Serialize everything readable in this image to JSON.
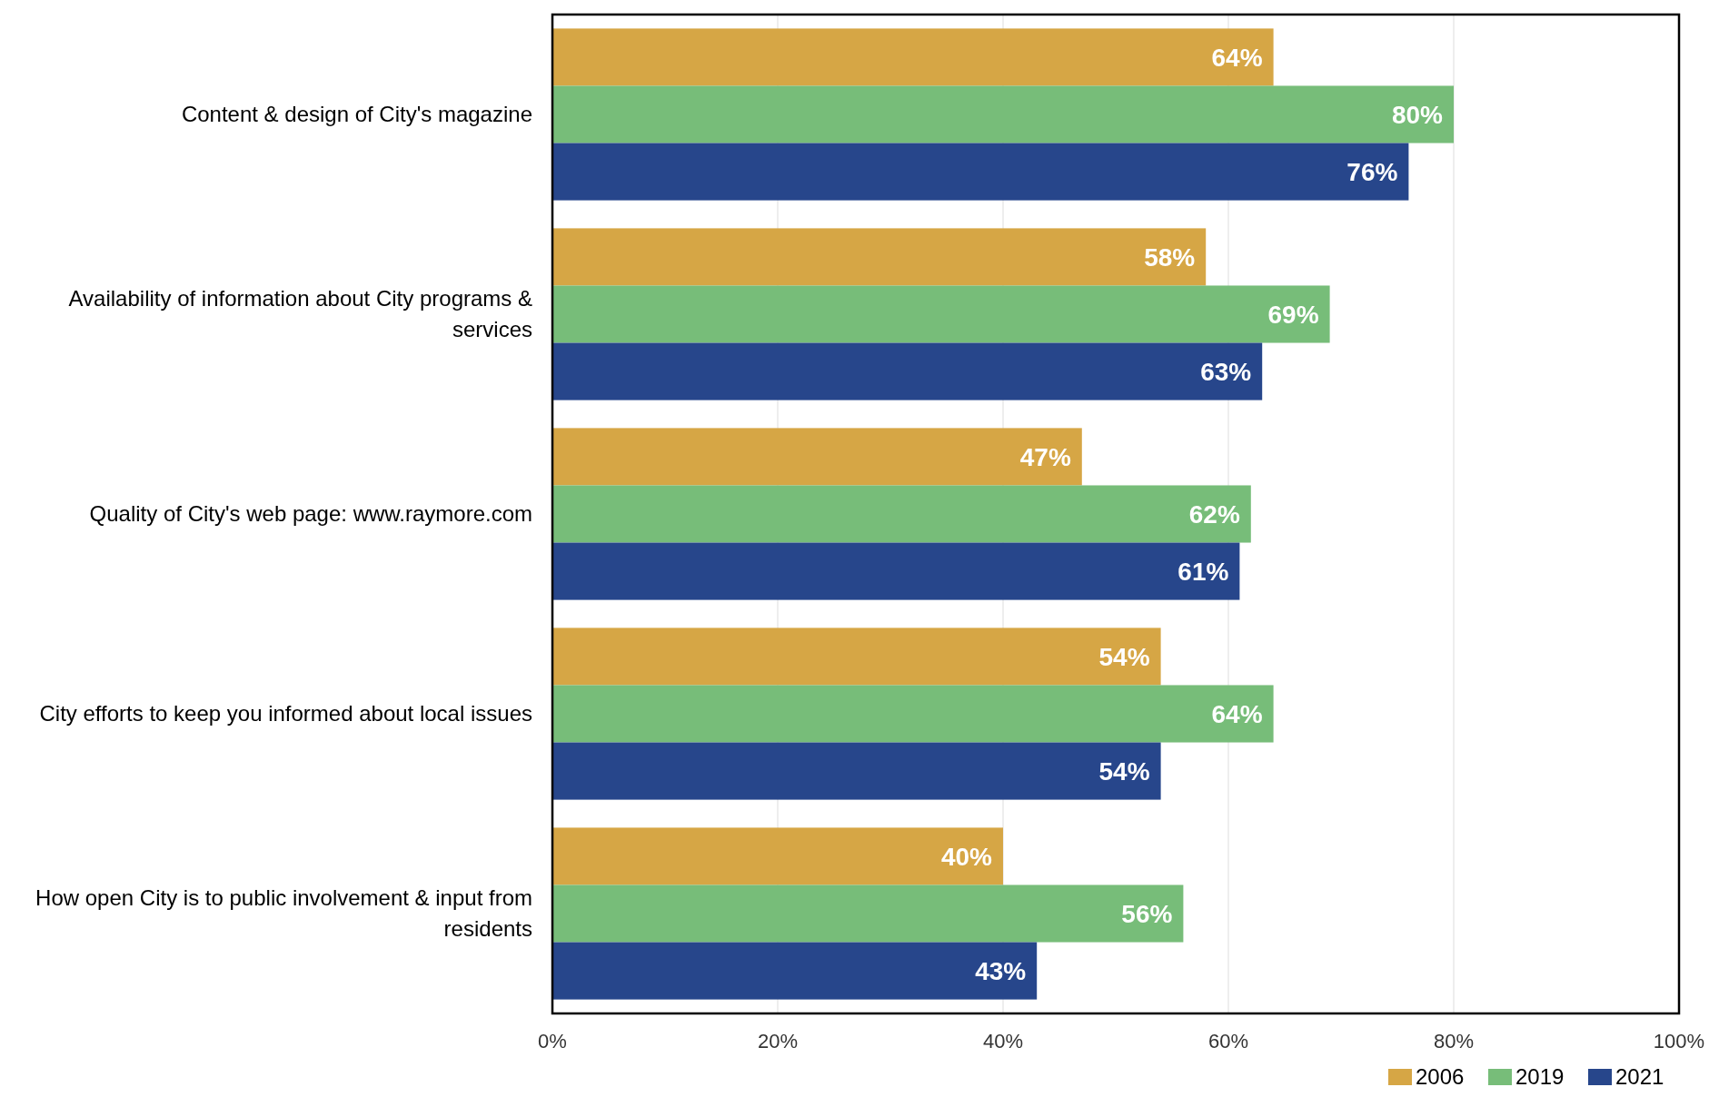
{
  "chart_data": {
    "type": "bar",
    "orientation": "horizontal",
    "categories": [
      "Content & design of City's magazine",
      "Availability of information about City programs & services",
      "Quality of City's web page: www.raymore.com",
      "City efforts to keep you informed about local issues",
      "How open City is to public involvement & input from residents"
    ],
    "series": [
      {
        "name": "2006",
        "color": "#d6a645",
        "values": [
          64,
          58,
          47,
          54,
          40
        ],
        "value_labels": [
          "64%",
          "58%",
          "47%",
          "54%",
          "40%"
        ]
      },
      {
        "name": "2019",
        "color": "#77bd79",
        "values": [
          80,
          69,
          62,
          64,
          56
        ],
        "value_labels": [
          "80%",
          "69%",
          "62%",
          "64%",
          "56%"
        ]
      },
      {
        "name": "2021",
        "color": "#27468b",
        "values": [
          76,
          63,
          61,
          54,
          43
        ],
        "value_labels": [
          "76%",
          "63%",
          "61%",
          "54%",
          "43%"
        ]
      }
    ],
    "xlim": [
      0,
      100
    ],
    "xticks": [
      {
        "value": 0,
        "label": "0%"
      },
      {
        "value": 20,
        "label": "20%"
      },
      {
        "value": 40,
        "label": "40%"
      },
      {
        "value": 60,
        "label": "60%"
      },
      {
        "value": 80,
        "label": "80%"
      },
      {
        "value": 100,
        "label": "100%"
      }
    ],
    "grid": "x",
    "legend": "bottom right"
  }
}
